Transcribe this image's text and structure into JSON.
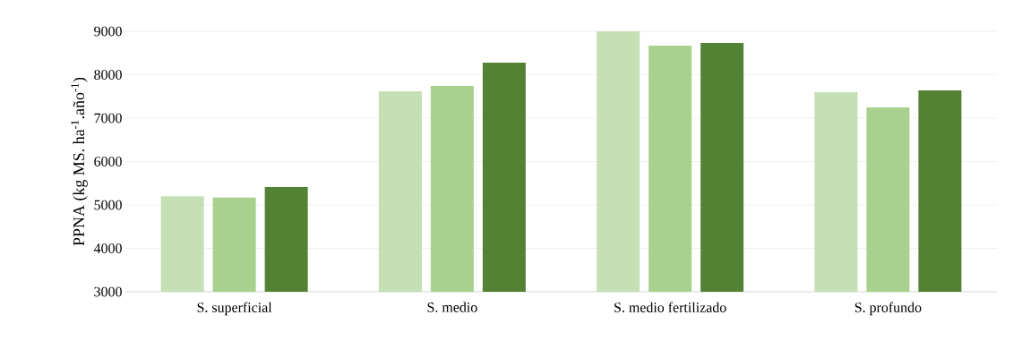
{
  "chart_data": {
    "type": "bar",
    "ylabel": "PPNA (kg MS. ha$^{-1}$.año$^{-1}$)",
    "categories": [
      "S. superficial",
      "S. medio",
      "S. medio fertilizado",
      "S. profundo"
    ],
    "series": [
      {
        "color": "#c5e0b4",
        "values": [
          5200,
          7620,
          9000,
          7600
        ]
      },
      {
        "color": "#a9d18e",
        "values": [
          5170,
          7740,
          8670,
          7250
        ]
      },
      {
        "color": "#548235",
        "values": [
          5410,
          8280,
          8730,
          7640
        ]
      }
    ],
    "ylim": [
      3000,
      9000
    ],
    "yticks": [
      3000,
      4000,
      5000,
      6000,
      7000,
      8000,
      9000
    ],
    "grid": "y"
  }
}
